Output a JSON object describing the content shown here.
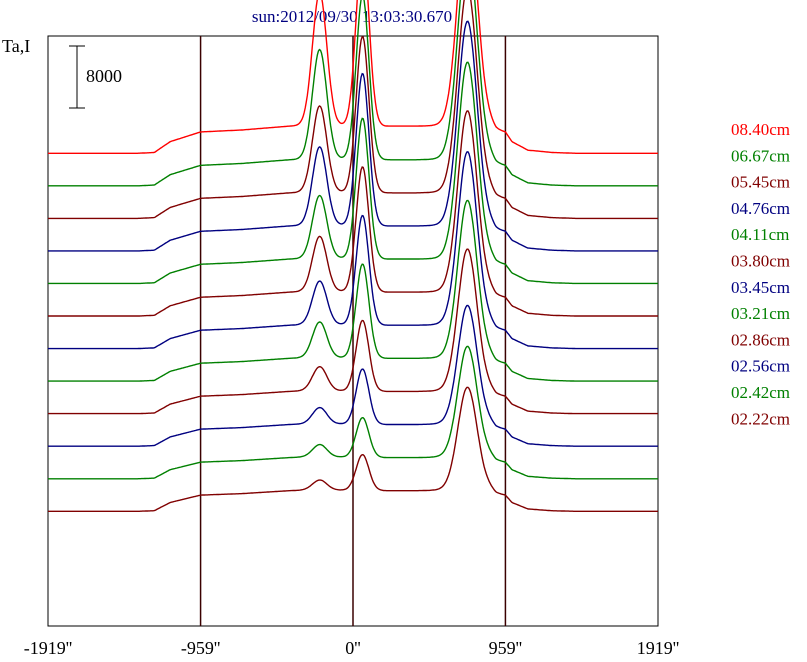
{
  "title": "sun:2012/09/30 13:03:30.670",
  "y_axis_label": "Ta,I",
  "scale_bar_label": "8000",
  "chart_data": {
    "type": "line",
    "title": "sun:2012/09/30 13:03:30.670",
    "ylabel": "Ta,I",
    "xlabel": "",
    "x_unit": "arcsec",
    "xlim": [
      -1919,
      1919
    ],
    "ylim_intensity": [
      0,
      64000
    ],
    "scale_bar": 8000,
    "x_ticks": [
      -1919,
      -959,
      0,
      959,
      1919
    ],
    "x_tick_labels": [
      "-1919''",
      "-959''",
      "0''",
      "959''",
      "1919''"
    ],
    "vertical_lines_at": [
      -959,
      0,
      959
    ],
    "legend_position": "right",
    "x": [
      -1919,
      -1500,
      -1350,
      -1250,
      -1150,
      -959,
      -700,
      -400,
      -300,
      -230,
      -190,
      -150,
      -100,
      -40,
      0,
      50,
      70,
      110,
      160,
      200,
      400,
      480,
      560,
      640,
      740,
      790,
      850,
      880,
      900,
      959,
      1000,
      1100,
      1250,
      1400,
      1500,
      1919
    ],
    "shape_unit": [
      0,
      0,
      0,
      0.02,
      0.3,
      0.55,
      0.6,
      0.7,
      0.72,
      0.74,
      0.75,
      0.73,
      0.72,
      0.72,
      0.73,
      0.74,
      0.74,
      0.72,
      0.71,
      0.7,
      0.7,
      0.71,
      0.73,
      0.76,
      0.8,
      0.8,
      0.78,
      0.7,
      0.62,
      0.55,
      0.3,
      0.08,
      0.02,
      0,
      0,
      0
    ],
    "series": [
      {
        "name": "08.40cm",
        "color": "#ff0000",
        "baseline": 61000,
        "plateau": 5000,
        "peaks": {
          "center": 23000,
          "left": 17000,
          "right": 28000
        }
      },
      {
        "name": "06.67cm",
        "color": "#008000",
        "baseline": 56800,
        "plateau": 4800,
        "peaks": {
          "center": 21000,
          "left": 14000,
          "right": 27000
        }
      },
      {
        "name": "05.45cm",
        "color": "#800000",
        "baseline": 52600,
        "plateau": 4700,
        "peaks": {
          "center": 20000,
          "left": 11000,
          "right": 26000
        }
      },
      {
        "name": "04.76cm",
        "color": "#000080",
        "baseline": 48400,
        "plateau": 4600,
        "peaks": {
          "center": 19500,
          "left": 10000,
          "right": 26000
        }
      },
      {
        "name": "04.11cm",
        "color": "#008000",
        "baseline": 44200,
        "plateau": 4500,
        "peaks": {
          "center": 18000,
          "left": 8000,
          "right": 25000
        }
      },
      {
        "name": "03.80cm",
        "color": "#800000",
        "baseline": 40000,
        "plateau": 4400,
        "peaks": {
          "center": 16000,
          "left": 7000,
          "right": 23000
        }
      },
      {
        "name": "03.45cm",
        "color": "#000080",
        "baseline": 35800,
        "plateau": 4300,
        "peaks": {
          "center": 14000,
          "left": 5500,
          "right": 22000
        }
      },
      {
        "name": "03.21cm",
        "color": "#008000",
        "baseline": 31600,
        "plateau": 4200,
        "peaks": {
          "center": 12000,
          "left": 4500,
          "right": 20000
        }
      },
      {
        "name": "02.86cm",
        "color": "#800000",
        "baseline": 27400,
        "plateau": 4100,
        "peaks": {
          "center": 9000,
          "left": 3000,
          "right": 18000
        }
      },
      {
        "name": "02.56cm",
        "color": "#000080",
        "baseline": 23200,
        "plateau": 4000,
        "peaks": {
          "center": 7000,
          "left": 2000,
          "right": 15000
        }
      },
      {
        "name": "02.42cm",
        "color": "#008000",
        "baseline": 19000,
        "plateau": 3900,
        "peaks": {
          "center": 5000,
          "left": 1500,
          "right": 14000
        }
      },
      {
        "name": "02.22cm",
        "color": "#800000",
        "baseline": 14800,
        "plateau": 3800,
        "peaks": {
          "center": 4500,
          "left": 1200,
          "right": 13000
        }
      }
    ]
  }
}
